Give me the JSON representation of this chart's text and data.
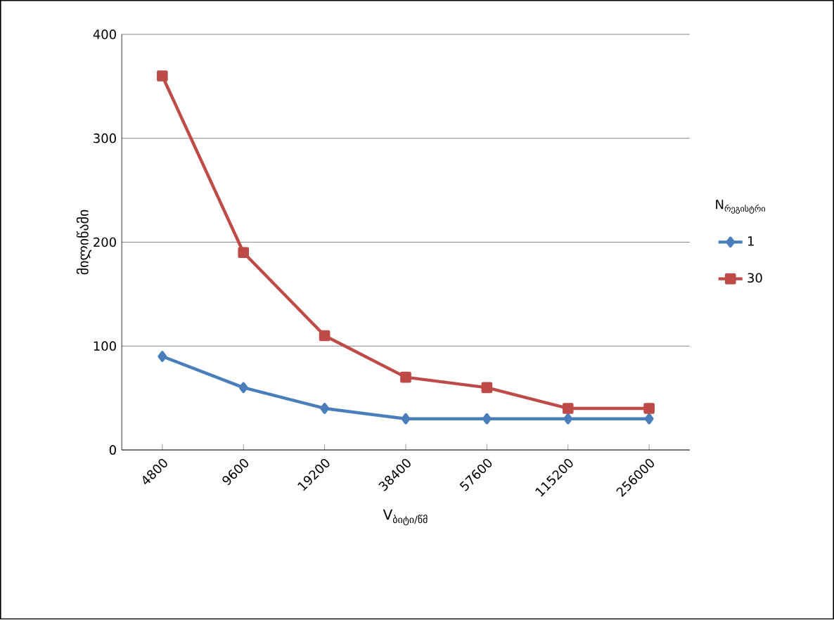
{
  "chart_data": {
    "type": "line",
    "xlabel": "V$_{ბიტი/წმ}$",
    "ylabel": "მილიწამი",
    "legend_title": "N$_{რეგისტრი}$",
    "categories": [
      "4800",
      "9600",
      "19200",
      "38400",
      "57600",
      "115200",
      "256000"
    ],
    "series": [
      {
        "name": "1",
        "color": "#4a7ebb",
        "marker": "diamond",
        "values": [
          90,
          60,
          40,
          30,
          30,
          30,
          30
        ]
      },
      {
        "name": "30",
        "color": "#be4b48",
        "marker": "square",
        "values": [
          360,
          190,
          110,
          70,
          60,
          40,
          40
        ]
      }
    ],
    "ylim": [
      0,
      400
    ],
    "yticks": [
      0,
      100,
      200,
      300,
      400
    ],
    "grid": "y",
    "legend": "right",
    "line_style": "solid"
  }
}
